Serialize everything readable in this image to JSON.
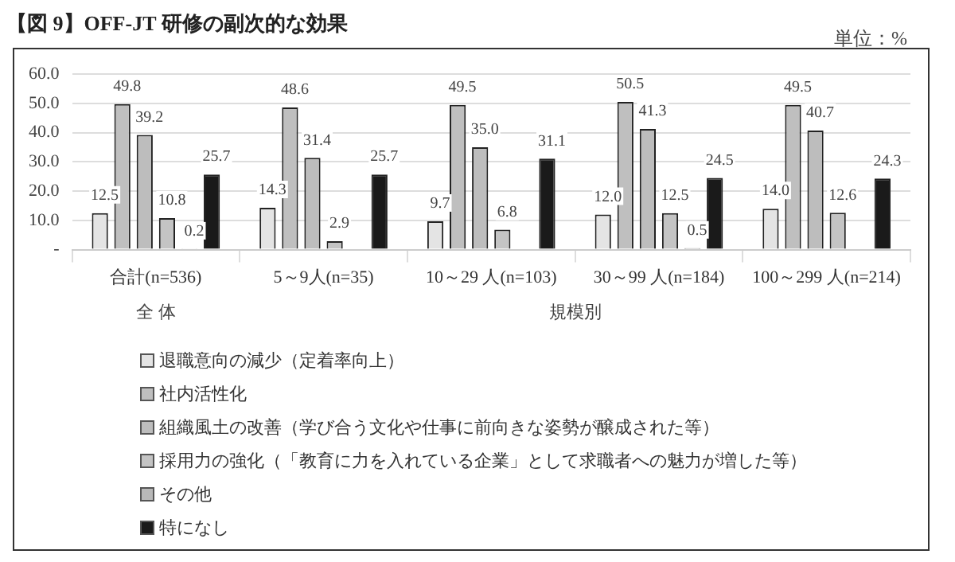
{
  "chart_data": {
    "type": "bar",
    "title": "【図 9】OFF-JT 研修の副次的な効果",
    "categories": [
      "合計(n=536)",
      "5～9人(n=35)",
      "10～29 人(n=103)",
      "30～99 人(n=184)",
      "100～299 人(n=214)"
    ],
    "series": [
      {
        "name": "退職意向の減少（定着率向上）",
        "color": "#e4e4e4",
        "values": [
          12.5,
          14.3,
          9.7,
          12.0,
          14.0
        ],
        "value_labels": [
          "12.5",
          "14.3",
          "9.7",
          "12.0",
          "14.0"
        ]
      },
      {
        "name": "社内活性化",
        "color": "#bfbfbf",
        "values": [
          49.8,
          48.6,
          49.5,
          50.5,
          49.5
        ],
        "value_labels": [
          "49.8",
          "48.6",
          "49.5",
          "50.5",
          "49.5"
        ]
      },
      {
        "name": "組織風土の改善（学び合う文化や仕事に前向きな姿勢が醸成された等）",
        "color": "#bdbdbd",
        "values": [
          39.2,
          31.4,
          35.0,
          41.3,
          40.7
        ],
        "value_labels": [
          "39.2",
          "31.4",
          "35.0",
          "41.3",
          "40.7"
        ]
      },
      {
        "name": "採用力の強化（「教育に力を入れている企業」として求職者への魅力が増した等）",
        "color": "#c4c4c4",
        "values": [
          10.8,
          2.9,
          6.8,
          12.5,
          12.6
        ],
        "value_labels": [
          "10.8",
          "2.9",
          "6.8",
          "12.5",
          "12.6"
        ]
      },
      {
        "name": "その他",
        "color": "#b8b8b8",
        "values": [
          0.2,
          null,
          null,
          0.5,
          null
        ],
        "value_labels": [
          "0.2",
          null,
          null,
          "0.5",
          null
        ]
      },
      {
        "name": "特になし",
        "color": "#1a1a1a",
        "values": [
          25.7,
          25.7,
          31.1,
          24.5,
          24.3
        ],
        "value_labels": [
          "25.7",
          "25.7",
          "31.1",
          "24.5",
          "24.3"
        ]
      }
    ],
    "ylim": [
      0,
      60
    ],
    "yticks": [
      {
        "value": 0,
        "label": "-"
      },
      {
        "value": 10,
        "label": "10.0"
      },
      {
        "value": 20,
        "label": "20.0"
      },
      {
        "value": 30,
        "label": "30.0"
      },
      {
        "value": 40,
        "label": "40.0"
      },
      {
        "value": 50,
        "label": "50.0"
      },
      {
        "value": 60,
        "label": "60.0"
      }
    ],
    "grid": "y",
    "legend": "bottom",
    "annotations": [
      "単位：%",
      "全 体",
      "規模別"
    ]
  }
}
